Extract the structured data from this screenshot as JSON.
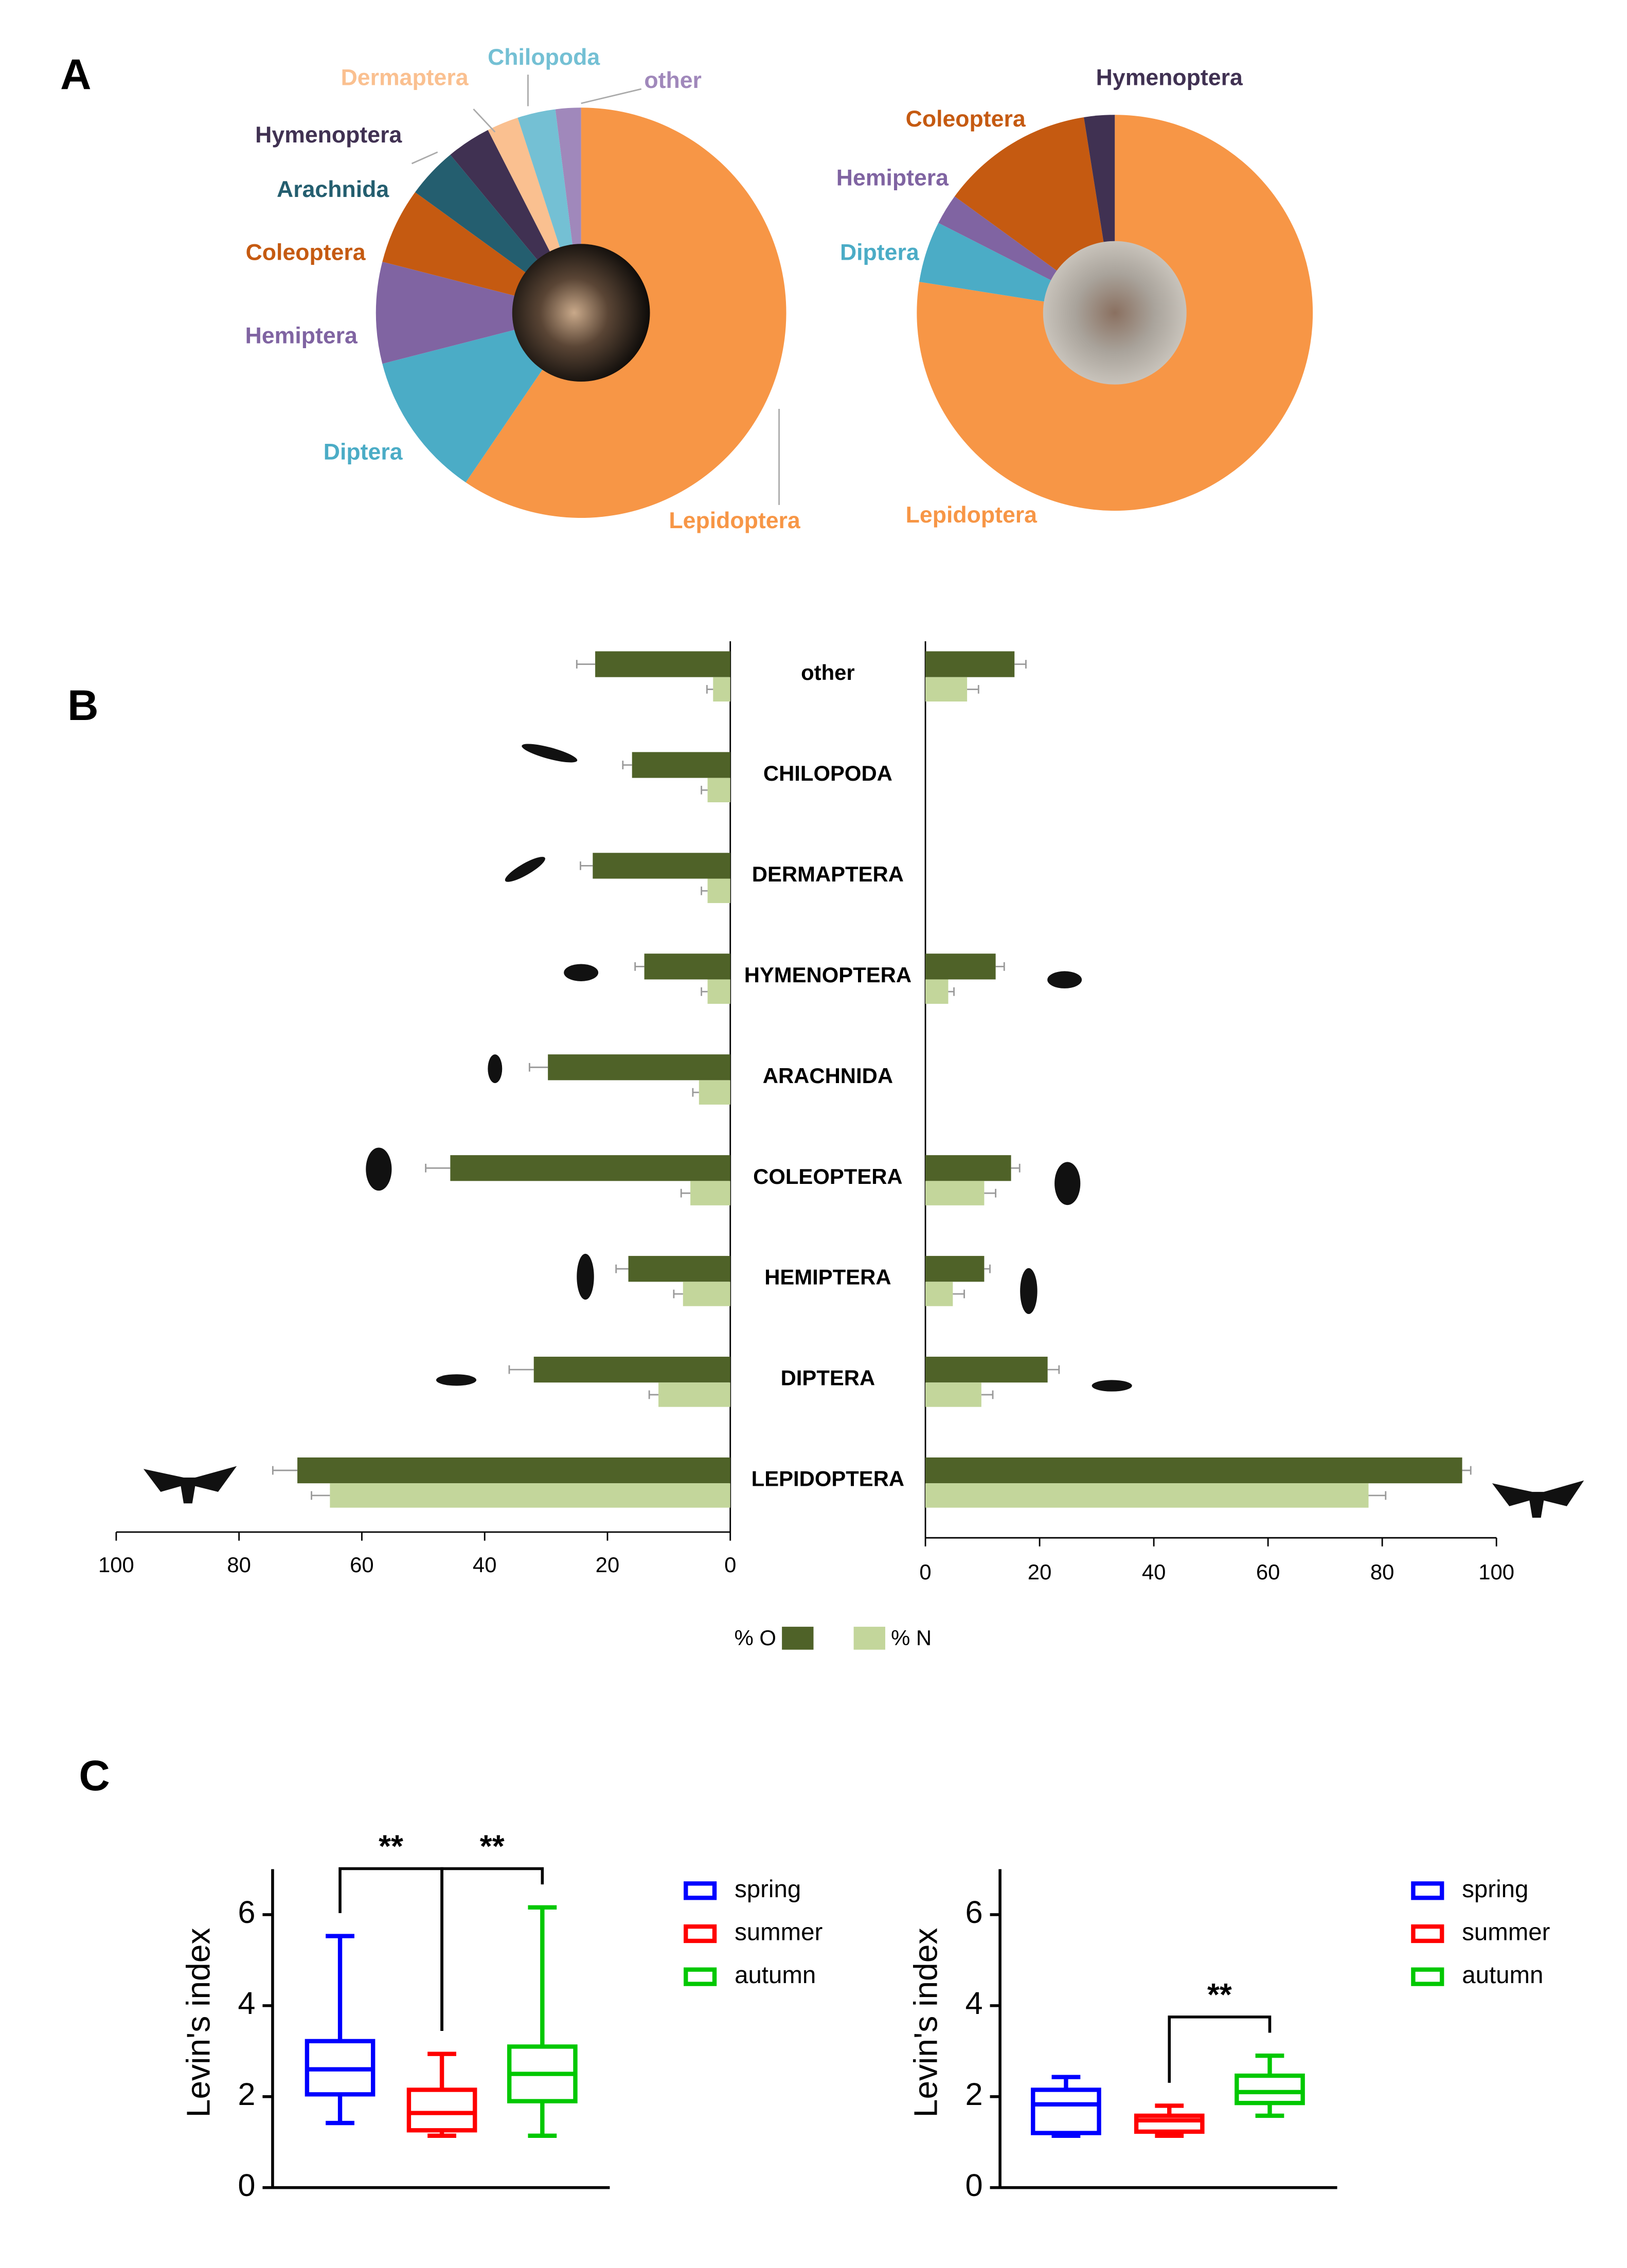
{
  "panel_labels": [
    "A",
    "B",
    "C"
  ],
  "chart_data": [
    {
      "type": "pie",
      "categories": [
        "Lepidoptera",
        "Diptera",
        "Hemiptera",
        "Coleoptera",
        "Arachnida",
        "Hymenoptera",
        "Dermaptera",
        "Chilopoda",
        "other"
      ],
      "values": [
        59.5,
        11.5,
        8,
        6,
        4,
        3.5,
        2.5,
        3,
        2
      ],
      "colors": [
        "#f79646",
        "#4bacc6",
        "#8064a2",
        "#c55a11",
        "#245e6f",
        "#403152",
        "#fac090",
        "#74c0d4",
        "#a088bb"
      ]
    },
    {
      "type": "pie",
      "categories": [
        "Lepidoptera",
        "Diptera",
        "Hemiptera",
        "Coleoptera",
        "Hymenoptera"
      ],
      "values": [
        77.5,
        5,
        2.5,
        12.5,
        2.5
      ],
      "colors": [
        "#f79646",
        "#4bacc6",
        "#8064a2",
        "#c55a11",
        "#403152"
      ]
    },
    {
      "type": "butterfly-bar",
      "categories": [
        "other",
        "CHILOPODA",
        "DERMAPTERA",
        "HYMENOPTERA",
        "ARACHNIDA",
        "COLEOPTERA",
        "HEMIPTERA",
        "DIPTERA",
        "LEPIDOPTERA"
      ],
      "series": [
        {
          "name": "% O",
          "color": "#4f6228",
          "values_left": [
            22,
            16,
            22.4,
            14,
            29.7,
            45.6,
            16.6,
            32,
            70.5
          ],
          "errors_left": [
            3,
            1.5,
            2,
            1.5,
            3,
            4,
            2,
            4,
            4
          ],
          "values_right": [
            15.6,
            null,
            null,
            12.3,
            null,
            15,
            10.3,
            21.4,
            94
          ],
          "errors_right": [
            2,
            null,
            null,
            1.5,
            null,
            1.5,
            1,
            2,
            1.5
          ]
        },
        {
          "name": "% N",
          "color": "#c3d69b",
          "values_left": [
            2.8,
            3.7,
            3.7,
            3.7,
            5.1,
            6.5,
            7.7,
            11.7,
            65.2
          ],
          "errors_left": [
            1,
            1,
            1,
            1,
            1,
            1.5,
            1.5,
            1.5,
            3
          ],
          "values_right": [
            7.3,
            null,
            null,
            4,
            null,
            10.3,
            4.8,
            9.8,
            77.6
          ],
          "errors_right": [
            2,
            null,
            null,
            1,
            null,
            2,
            2,
            2,
            3
          ]
        }
      ],
      "xlim_left": [
        100,
        0
      ],
      "xticks_left": [
        100,
        80,
        60,
        40,
        20,
        0
      ],
      "xlim_right": [
        0,
        100
      ],
      "xticks_right": [
        0,
        20,
        40,
        60,
        80,
        100
      ]
    },
    {
      "type": "box",
      "ylabel": "Levin's index",
      "ylim": [
        0,
        7
      ],
      "yticks": [
        0,
        2,
        4,
        6
      ],
      "series": [
        {
          "name": "spring",
          "color": "#0000ff",
          "min": 1.42,
          "q1": 2.05,
          "median": 2.6,
          "q3": 3.22,
          "max": 5.53
        },
        {
          "name": "summer",
          "color": "#ff0000",
          "min": 1.14,
          "q1": 1.26,
          "median": 1.64,
          "q3": 2.15,
          "max": 2.94
        },
        {
          "name": "autumn",
          "color": "#00c800",
          "min": 1.14,
          "q1": 1.9,
          "median": 2.5,
          "q3": 3.1,
          "max": 6.16
        }
      ],
      "annotations": [
        {
          "between": [
            "spring",
            "summer"
          ],
          "label": "**"
        },
        {
          "between": [
            "summer",
            "autumn"
          ],
          "label": "**"
        }
      ]
    },
    {
      "type": "box",
      "ylabel": "Levin's index",
      "ylim": [
        0,
        7
      ],
      "yticks": [
        0,
        2,
        4,
        6
      ],
      "series": [
        {
          "name": "spring",
          "color": "#0000ff",
          "min": 1.14,
          "q1": 1.2,
          "median": 1.83,
          "q3": 2.15,
          "max": 2.43
        },
        {
          "name": "summer",
          "color": "#ff0000",
          "min": 1.14,
          "q1": 1.23,
          "median": 1.48,
          "q3": 1.58,
          "max": 1.8
        },
        {
          "name": "autumn",
          "color": "#00c800",
          "min": 1.58,
          "q1": 1.86,
          "median": 2.1,
          "q3": 2.46,
          "max": 2.9
        }
      ],
      "annotations": [
        {
          "between": [
            "summer",
            "autumn"
          ],
          "label": "**"
        }
      ]
    }
  ]
}
